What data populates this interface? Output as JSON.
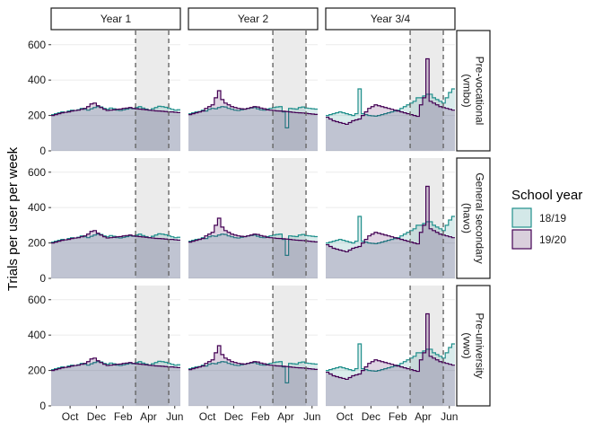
{
  "chart_data": {
    "type": "area",
    "ylabel": "Trials per user per week",
    "xlabel": "",
    "ylim": [
      0,
      680
    ],
    "yticks": [
      0,
      200,
      400,
      600
    ],
    "xticks": [
      "Oct",
      "Dec",
      "Feb",
      "Apr",
      "Jun"
    ],
    "columns": [
      "Year 1",
      "Year 2",
      "Year 3/4"
    ],
    "rows": [
      "Pre-vocational (vmbo)",
      "General secondary (havo)",
      "Pre-university (vwo)"
    ],
    "rows_display": [
      [
        "Pre-vocational",
        "(vmbo)"
      ],
      [
        "General secondary",
        "(havo)"
      ],
      [
        "Pre-university",
        "(vwo)"
      ]
    ],
    "legend": {
      "title": "School year",
      "items": [
        {
          "label": "18/19",
          "color": "#21908c",
          "fill": "#d3e8e8"
        },
        {
          "label": "19/20",
          "color": "#440154",
          "fill": "#d9cfdc"
        }
      ],
      "placement": "right"
    },
    "shaded_region": {
      "x_start": "Mar 16",
      "x_end": "Jun 1",
      "label": ""
    },
    "series": [
      {
        "name": "18/19",
        "panels": [
          [
            205,
            210,
            215,
            220,
            218,
            225,
            230,
            228,
            232,
            240,
            235,
            230,
            238,
            245,
            250,
            248,
            240,
            235,
            242,
            238,
            230,
            228,
            232,
            236,
            240,
            238,
            245,
            250,
            242,
            236,
            230,
            238,
            245,
            252,
            250,
            246,
            240,
            235,
            230,
            232
          ],
          [
            210,
            215,
            220,
            222,
            230,
            225,
            235,
            240,
            238,
            245,
            250,
            248,
            240,
            235,
            230,
            228,
            232,
            236,
            240,
            242,
            245,
            238,
            232,
            230,
            236,
            240,
            245,
            248,
            250,
            220,
            130,
            240,
            238,
            236,
            245,
            248,
            242,
            240,
            238,
            236
          ],
          [
            200,
            205,
            210,
            215,
            220,
            215,
            210,
            205,
            200,
            210,
            350,
            210,
            205,
            200,
            198,
            196,
            200,
            205,
            210,
            215,
            220,
            225,
            230,
            240,
            250,
            260,
            270,
            280,
            300,
            300,
            310,
            320,
            320,
            300,
            290,
            280,
            270,
            300,
            330,
            350
          ]
        ]
      },
      {
        "name": "19/20",
        "panels": [
          [
            200,
            205,
            210,
            215,
            218,
            220,
            225,
            228,
            230,
            235,
            240,
            250,
            265,
            270,
            255,
            245,
            235,
            228,
            230,
            232,
            235,
            236,
            240,
            242,
            245,
            240,
            238,
            236,
            234,
            232,
            230,
            228,
            226,
            225,
            224,
            222,
            220,
            220,
            218,
            216
          ],
          [
            205,
            210,
            215,
            220,
            225,
            240,
            250,
            260,
            300,
            340,
            290,
            270,
            260,
            250,
            245,
            240,
            238,
            236,
            240,
            245,
            250,
            248,
            242,
            238,
            232,
            230,
            228,
            226,
            225,
            224,
            222,
            220,
            218,
            216,
            215,
            214,
            212,
            210,
            208,
            206
          ],
          [
            190,
            180,
            170,
            165,
            160,
            155,
            150,
            160,
            170,
            175,
            180,
            200,
            220,
            240,
            250,
            260,
            255,
            250,
            245,
            240,
            235,
            230,
            225,
            220,
            215,
            210,
            205,
            200,
            195,
            260,
            300,
            520,
            280,
            270,
            260,
            250,
            245,
            240,
            235,
            230
          ]
        ]
      }
    ]
  }
}
